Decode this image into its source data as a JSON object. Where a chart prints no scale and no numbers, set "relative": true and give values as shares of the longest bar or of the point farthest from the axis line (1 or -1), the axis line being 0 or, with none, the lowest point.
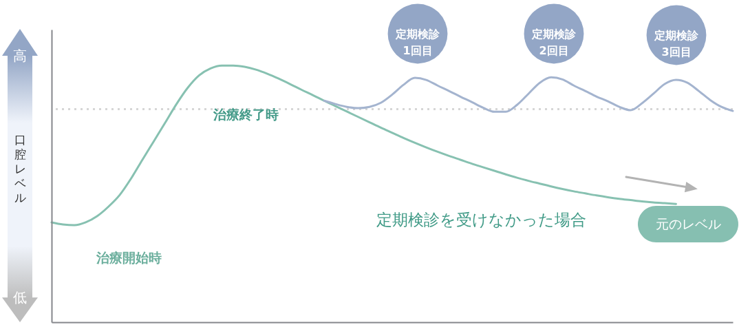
{
  "chart_data": {
    "type": "line",
    "relative": true,
    "ylabel": "口腔レベル",
    "categories": [
      null,
      null,
      null,
      null,
      null,
      null,
      null,
      null,
      null,
      null,
      null,
      null,
      null,
      null,
      null,
      null,
      null,
      null,
      null,
      null,
      null,
      null,
      null,
      null,
      null,
      null,
      null,
      null,
      null,
      null,
      null,
      null,
      null,
      null,
      null,
      null,
      null,
      null,
      null,
      null,
      null,
      null,
      null,
      null,
      null,
      null,
      null,
      null,
      null,
      null,
      null,
      null,
      null,
      null,
      null,
      null,
      null,
      null,
      null,
      null,
      null
    ],
    "series": [
      {
        "name": "定期検診を受けなかった場合",
        "color": "#87c1b1",
        "values": [
          0.389,
          0.381,
          0.378,
          0.389,
          0.413,
          0.45,
          0.496,
          0.56,
          0.633,
          0.705,
          0.777,
          0.85,
          0.914,
          0.962,
          0.989,
          1.0,
          1.0,
          0.995,
          0.984,
          0.968,
          0.949,
          0.928,
          0.906,
          0.885,
          0.863,
          0.842,
          0.821,
          0.8,
          0.779,
          0.758,
          0.738,
          0.718,
          0.699,
          0.681,
          0.664,
          0.648,
          0.633,
          0.618,
          0.604,
          0.59,
          0.576,
          0.563,
          0.551,
          0.54,
          0.529,
          0.519,
          0.51,
          0.502,
          0.494,
          0.487,
          0.481,
          0.476,
          0.471,
          0.467,
          0.464,
          0.461,
          null,
          null,
          null,
          null,
          null
        ]
      },
      {
        "color": "#a4b4cf",
        "values": [
          null,
          null,
          null,
          null,
          null,
          null,
          null,
          null,
          null,
          null,
          null,
          null,
          null,
          null,
          null,
          null,
          null,
          null,
          null,
          null,
          null,
          null,
          null,
          null,
          0.863,
          0.85,
          0.839,
          0.834,
          0.839,
          0.855,
          0.887,
          0.925,
          0.952,
          0.944,
          0.922,
          0.901,
          0.879,
          0.858,
          0.836,
          0.82,
          0.82,
          0.847,
          0.89,
          0.933,
          0.954,
          0.946,
          0.922,
          0.901,
          0.879,
          0.861,
          0.839,
          0.826,
          0.853,
          0.89,
          0.928,
          0.944,
          0.933,
          0.901,
          0.866,
          0.839,
          0.823
        ]
      }
    ],
    "ref_lines": [
      {
        "axis": "y",
        "value": 0.83,
        "color": "#d6d6d6",
        "line_style": "dotted"
      }
    ],
    "annotations": [
      "高",
      "低",
      "治療開始時",
      "治療終了時",
      "元のレベル",
      "定期検診\n1回目",
      "定期検診\n2回目",
      "定期検診\n3回目"
    ]
  }
}
